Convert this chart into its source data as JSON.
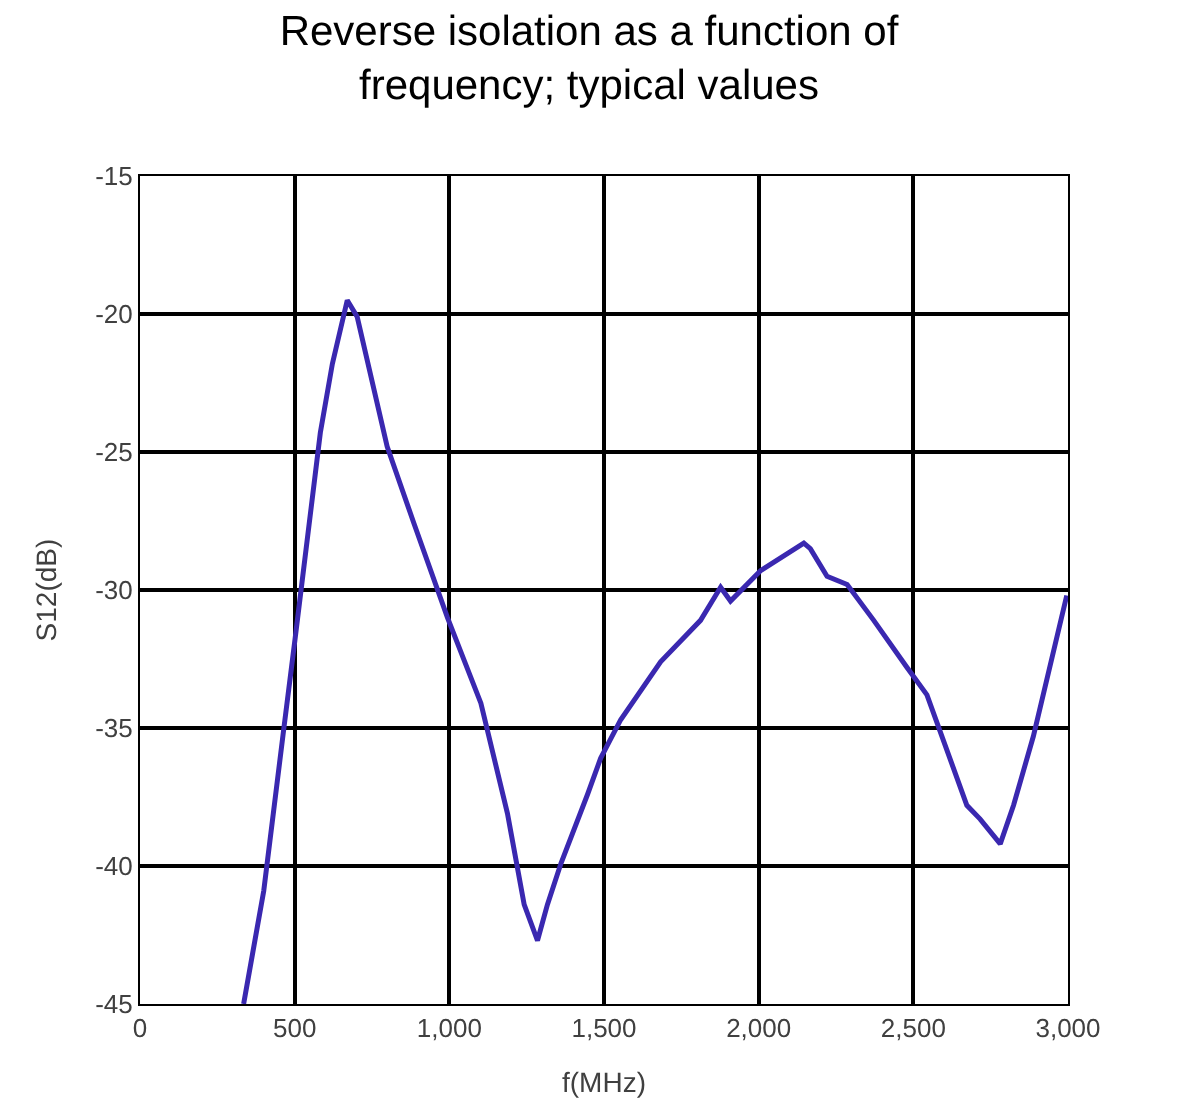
{
  "chart_data": {
    "type": "line",
    "title": "Reverse isolation as a function of frequency; typical values",
    "xlabel": "f(MHz)",
    "ylabel": "S12(dB)",
    "x": [
      335,
      400,
      464,
      501,
      583,
      622,
      670,
      702,
      799,
      886,
      994,
      1102,
      1188,
      1242,
      1285,
      1317,
      1361,
      1447,
      1489,
      1554,
      1683,
      1812,
      1877,
      1909,
      2006,
      2146,
      2167,
      2221,
      2286,
      2372,
      2479,
      2544,
      2673,
      2716,
      2781,
      2824,
      2888,
      2996
    ],
    "series": [
      {
        "color": "#3a28b0",
        "values": [
          -45.0,
          -40.9,
          -35.1,
          -31.8,
          -24.3,
          -21.8,
          -19.5,
          -20.1,
          -24.8,
          -27.6,
          -31.0,
          -34.1,
          -38.1,
          -41.4,
          -42.7,
          -41.4,
          -39.9,
          -37.4,
          -36.1,
          -34.7,
          -32.6,
          -31.1,
          -29.9,
          -30.4,
          -29.3,
          -28.3,
          -28.5,
          -29.5,
          -29.8,
          -31.1,
          -32.8,
          -33.8,
          -37.8,
          -38.3,
          -39.2,
          -37.8,
          -35.3,
          -30.2
        ]
      }
    ],
    "xlim": [
      0,
      3000
    ],
    "xticks": [
      0,
      500,
      {
        "value": 1000,
        "label": "1,000"
      },
      {
        "value": 1500,
        "label": "1,500"
      },
      {
        "value": 2000,
        "label": "2,000"
      },
      {
        "value": 2500,
        "label": "2,500"
      },
      {
        "value": 3000,
        "label": "3,000"
      }
    ],
    "ylim": [
      -45,
      -15
    ],
    "yticks": [
      -15,
      -20,
      -25,
      -30,
      -35,
      -40,
      -45
    ],
    "grid": true,
    "legend": false,
    "marker": "none",
    "line_style": "solid"
  }
}
